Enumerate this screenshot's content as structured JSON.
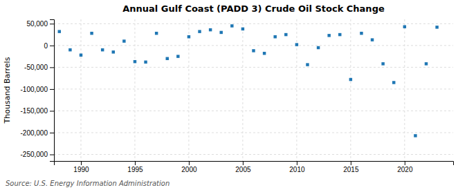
{
  "chart_data": {
    "type": "scatter",
    "title": "Annual Gulf Coast (PADD 3) Crude Oil Stock Change",
    "y_label": "Thousand Barrels",
    "annotation": "Source: U.S. Energy Information Administration",
    "x": [
      1988,
      1989,
      1990,
      1991,
      1992,
      1993,
      1994,
      1995,
      1996,
      1997,
      1998,
      1999,
      2000,
      2001,
      2002,
      2003,
      2004,
      2005,
      2006,
      2007,
      2008,
      2009,
      2010,
      2011,
      2012,
      2013,
      2014,
      2015,
      2016,
      2017,
      2018,
      2019,
      2020,
      2021,
      2022,
      2023
    ],
    "values": [
      32000,
      -10000,
      -22000,
      28000,
      -10000,
      -15000,
      10000,
      -37000,
      -38000,
      28000,
      -30000,
      -25000,
      20000,
      32000,
      36000,
      30000,
      45000,
      38000,
      -12000,
      -18000,
      20000,
      25000,
      2000,
      -44000,
      -5000,
      23000,
      25000,
      -78000,
      28000,
      13000,
      -42000,
      -85000,
      43000,
      -207000,
      -42000,
      42000
    ],
    "xlim": [
      1987.5,
      2024.5
    ],
    "xticks": [
      1990,
      1995,
      2000,
      2005,
      2010,
      2015,
      2020
    ],
    "ylim": [
      -265000,
      60000
    ],
    "yticks": [
      {
        "value": 50000,
        "label": "50,000"
      },
      0,
      {
        "value": -50000,
        "label": "-50,000"
      },
      {
        "value": -100000,
        "label": "-100,000"
      },
      {
        "value": -150000,
        "label": "-150,000"
      },
      {
        "value": -200000,
        "label": "-200,000"
      },
      {
        "value": -250000,
        "label": "-250,000"
      }
    ],
    "marker": "square",
    "grid": true
  }
}
